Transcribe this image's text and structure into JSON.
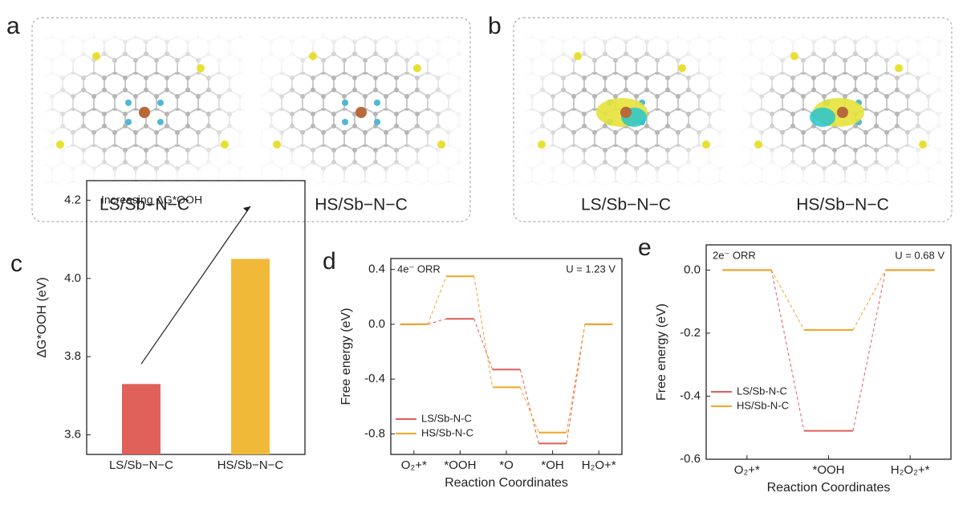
{
  "panels": [
    {
      "label": "a",
      "captions": [
        "LS/Sb−N−C",
        "HS/Sb−N−C"
      ]
    },
    {
      "label": "b",
      "captions": [
        "LS/Sb−N−C",
        "HS/Sb−N−C"
      ]
    }
  ],
  "chart_data": [
    {
      "panel": "c",
      "type": "bar",
      "ylabel": "ΔG*OOH (eV)",
      "annotation": "Increasing ΔG*OOH",
      "categories": [
        "LS/Sb−N−C",
        "HS/Sb−N−C"
      ],
      "values": [
        3.73,
        4.05
      ],
      "colors": [
        "#e0605a",
        "#f0b93a"
      ],
      "ylim": [
        3.55,
        4.25
      ],
      "yticks": [
        3.6,
        3.8,
        {
          "value": 4.0,
          "label": "4.0"
        },
        4.2
      ]
    },
    {
      "panel": "d",
      "type": "energy-diagram",
      "ylabel": "Free energy (eV)",
      "xlabel": "Reaction Coordinates",
      "annotations": [
        "4e⁻ ORR",
        "U = 1.23 V"
      ],
      "categories": [
        "O₂+*",
        "*OOH",
        "*O",
        "*OH",
        "H₂O+*"
      ],
      "series": [
        {
          "name": "LS/Sb-N-C",
          "color": "#e0605a",
          "values": [
            0,
            0.04,
            -0.33,
            -0.87,
            0
          ]
        },
        {
          "name": "HS/Sb-N-C",
          "color": "#f5a623",
          "values": [
            0,
            0.35,
            -0.46,
            -0.79,
            0
          ]
        }
      ],
      "ylim": [
        -0.95,
        0.48
      ],
      "yticks": [
        -0.8,
        -0.4,
        {
          "value": 0,
          "label": "0.0"
        },
        0.4
      ],
      "legend": "lower left"
    },
    {
      "panel": "e",
      "type": "energy-diagram",
      "ylabel": "Free energy (eV)",
      "xlabel": "Reaction Coordinates",
      "annotations": [
        "2e⁻ ORR",
        "U = 0.68 V"
      ],
      "categories": [
        "O₂+*",
        "*OOH",
        "H₂O₂+*"
      ],
      "series": [
        {
          "name": "LS/Sb-N-C",
          "color": "#e0605a",
          "values": [
            0,
            -0.51,
            0
          ]
        },
        {
          "name": "HS/Sb-N-C",
          "color": "#f5a623",
          "values": [
            0,
            -0.19,
            0
          ]
        }
      ],
      "ylim": [
        -0.6,
        0.08
      ],
      "yticks": [
        -0.6,
        -0.4,
        -0.2,
        {
          "value": 0,
          "label": "0.0"
        }
      ],
      "legend": "lower left"
    }
  ]
}
